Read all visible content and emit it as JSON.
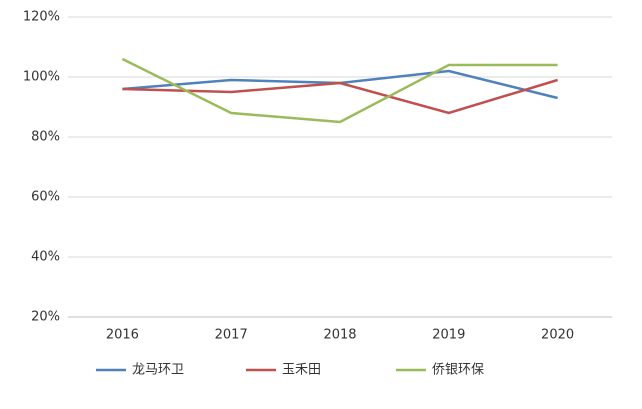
{
  "chart_data": {
    "type": "line",
    "categories": [
      "2016",
      "2017",
      "2018",
      "2019",
      "2020"
    ],
    "series": [
      {
        "name": "龙马环卫",
        "color": "#4f81bd",
        "values": [
          96,
          99,
          98,
          102,
          93
        ]
      },
      {
        "name": "玉禾田",
        "color": "#c0504d",
        "values": [
          96,
          95,
          98,
          88,
          99
        ]
      },
      {
        "name": "侨银环保",
        "color": "#9bbb59",
        "values": [
          106,
          88,
          85,
          104,
          104
        ]
      }
    ],
    "ylim": [
      20,
      120
    ],
    "yticks": [
      {
        "value": 20,
        "label": "20%"
      },
      {
        "value": 40,
        "label": "40%"
      },
      {
        "value": 60,
        "label": "60%"
      },
      {
        "value": 80,
        "label": "80%"
      },
      {
        "value": 100,
        "label": "100%"
      },
      {
        "value": 120,
        "label": "120%"
      }
    ],
    "grid": true
  }
}
